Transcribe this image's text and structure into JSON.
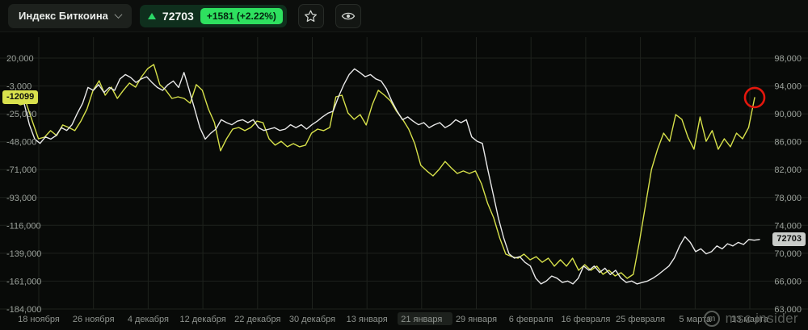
{
  "header": {
    "symbol_selector": {
      "label": "Индекс Биткоина"
    },
    "price": {
      "value": "72703",
      "change": "+1581 (+2.22%)"
    },
    "favorite_icon": "star",
    "watch_icon": "eye"
  },
  "colors": {
    "accent_green": "#2ee05f",
    "series_yellow": "#d6e04a",
    "series_white": "#e8e8e8",
    "annotation_red": "#e3170d",
    "badge_yellow": "#d9e14d",
    "badge_gray": "#c9ccc9"
  },
  "watermark": {
    "logo_letter": "m",
    "text": "msc insider"
  },
  "chart_data": {
    "type": "line",
    "title": "Индекс Биткоина",
    "grid": true,
    "x_ticks": [
      "18 ноября",
      "26 ноября",
      "4 декабря",
      "12 декабря",
      "22 декабря",
      "30 декабря",
      "13 января",
      "21 января",
      "29 января",
      "6 февраля",
      "16 февраля",
      "25 февраля",
      "5 марта",
      "13 марта"
    ],
    "left_axis": {
      "ticks": [
        "20,000",
        "-3,000",
        "-25,000",
        "-48,000",
        "-71,000",
        "-93,000",
        "-116,000",
        "-139,000",
        "-161,000",
        "-184,000"
      ],
      "max": 20000,
      "min": -184000,
      "current_label": "-12099",
      "current_value": -12099
    },
    "right_axis": {
      "ticks": [
        "98,000",
        "94,000",
        "90,000",
        "86,000",
        "82,000",
        "78,000",
        "74,000",
        "70,000",
        "66,000",
        "63,000"
      ],
      "max": 98000,
      "min": 63000,
      "current_label": "72703",
      "current_value": 72703
    },
    "annotation": {
      "type": "circle",
      "color": "#e3170d",
      "target": "end of yellow series"
    },
    "series": [
      {
        "name": "left-axis-index",
        "color": "#d6e04a",
        "axis": "left",
        "values": [
          -16100,
          -15400,
          -18000,
          -16700,
          -31200,
          -45600,
          -44300,
          -39000,
          -43000,
          -34400,
          -36400,
          -39000,
          -31200,
          -21300,
          -6200,
          1600,
          -10200,
          -3600,
          -12800,
          -6200,
          -300,
          -3600,
          4900,
          11500,
          14800,
          -1600,
          -6200,
          -12800,
          -11500,
          -12800,
          -16700,
          -1600,
          -6200,
          -21300,
          -32500,
          -55400,
          -45600,
          -37700,
          -36400,
          -39000,
          -36400,
          -31200,
          -32500,
          -45600,
          -50800,
          -47600,
          -52100,
          -49500,
          -52100,
          -50800,
          -41000,
          -37700,
          -39000,
          -36400,
          -11500,
          -10200,
          -24600,
          -29800,
          -25900,
          -34400,
          -18000,
          -6200,
          -10200,
          -14800,
          -23300,
          -29800,
          -37700,
          -49500,
          -67200,
          -71800,
          -75800,
          -70500,
          -64000,
          -69200,
          -73800,
          -71800,
          -73800,
          -71800,
          -82300,
          -98100,
          -109900,
          -126300,
          -139400,
          -141400,
          -142700,
          -139400,
          -144000,
          -141400,
          -146000,
          -142700,
          -149200,
          -144000,
          -149200,
          -142700,
          -152500,
          -147900,
          -152500,
          -149200,
          -155800,
          -152500,
          -157100,
          -154500,
          -159100,
          -155800,
          -129500,
          -100000,
          -70500,
          -54100,
          -41000,
          -47600,
          -25900,
          -29800,
          -44300,
          -54100,
          -27900,
          -47600,
          -39000,
          -54100,
          -45600,
          -52100,
          -41000,
          -45600,
          -36400,
          -12099
        ]
      },
      {
        "name": "bitcoin-index-price",
        "color": "#e8e8e8",
        "axis": "right",
        "values": [
          92400,
          92000,
          92400,
          91700,
          88700,
          86700,
          86100,
          87000,
          86700,
          87200,
          88300,
          87900,
          88700,
          90300,
          91700,
          93900,
          93500,
          94300,
          93200,
          93900,
          93500,
          95100,
          95700,
          95300,
          94600,
          95100,
          95400,
          94600,
          93900,
          93500,
          94300,
          94800,
          93900,
          96000,
          93500,
          90900,
          88300,
          86700,
          87500,
          88100,
          89400,
          89000,
          88700,
          89200,
          89400,
          89000,
          89400,
          88300,
          87900,
          88100,
          88300,
          87900,
          88100,
          88700,
          88300,
          88700,
          88100,
          88700,
          89200,
          89800,
          90300,
          90600,
          92600,
          94300,
          95700,
          96500,
          96000,
          95400,
          95700,
          95100,
          94800,
          93700,
          92000,
          90600,
          89400,
          89800,
          89200,
          88700,
          89000,
          88300,
          88700,
          89000,
          88300,
          88700,
          89400,
          89000,
          89400,
          87000,
          86400,
          86100,
          82500,
          79100,
          75700,
          72900,
          70700,
          70100,
          70300,
          69500,
          69000,
          67300,
          66500,
          66900,
          67600,
          67300,
          66700,
          66900,
          66500,
          67300,
          69000,
          68400,
          69000,
          68100,
          68700,
          67800,
          68400,
          67300,
          66700,
          66900,
          66500,
          66700,
          66900,
          67300,
          67800,
          68400,
          69000,
          70100,
          71800,
          73100,
          72300,
          71000,
          71400,
          70700,
          71000,
          71800,
          71400,
          72100,
          71800,
          72300,
          72000,
          72700,
          72600,
          72703
        ]
      }
    ]
  }
}
